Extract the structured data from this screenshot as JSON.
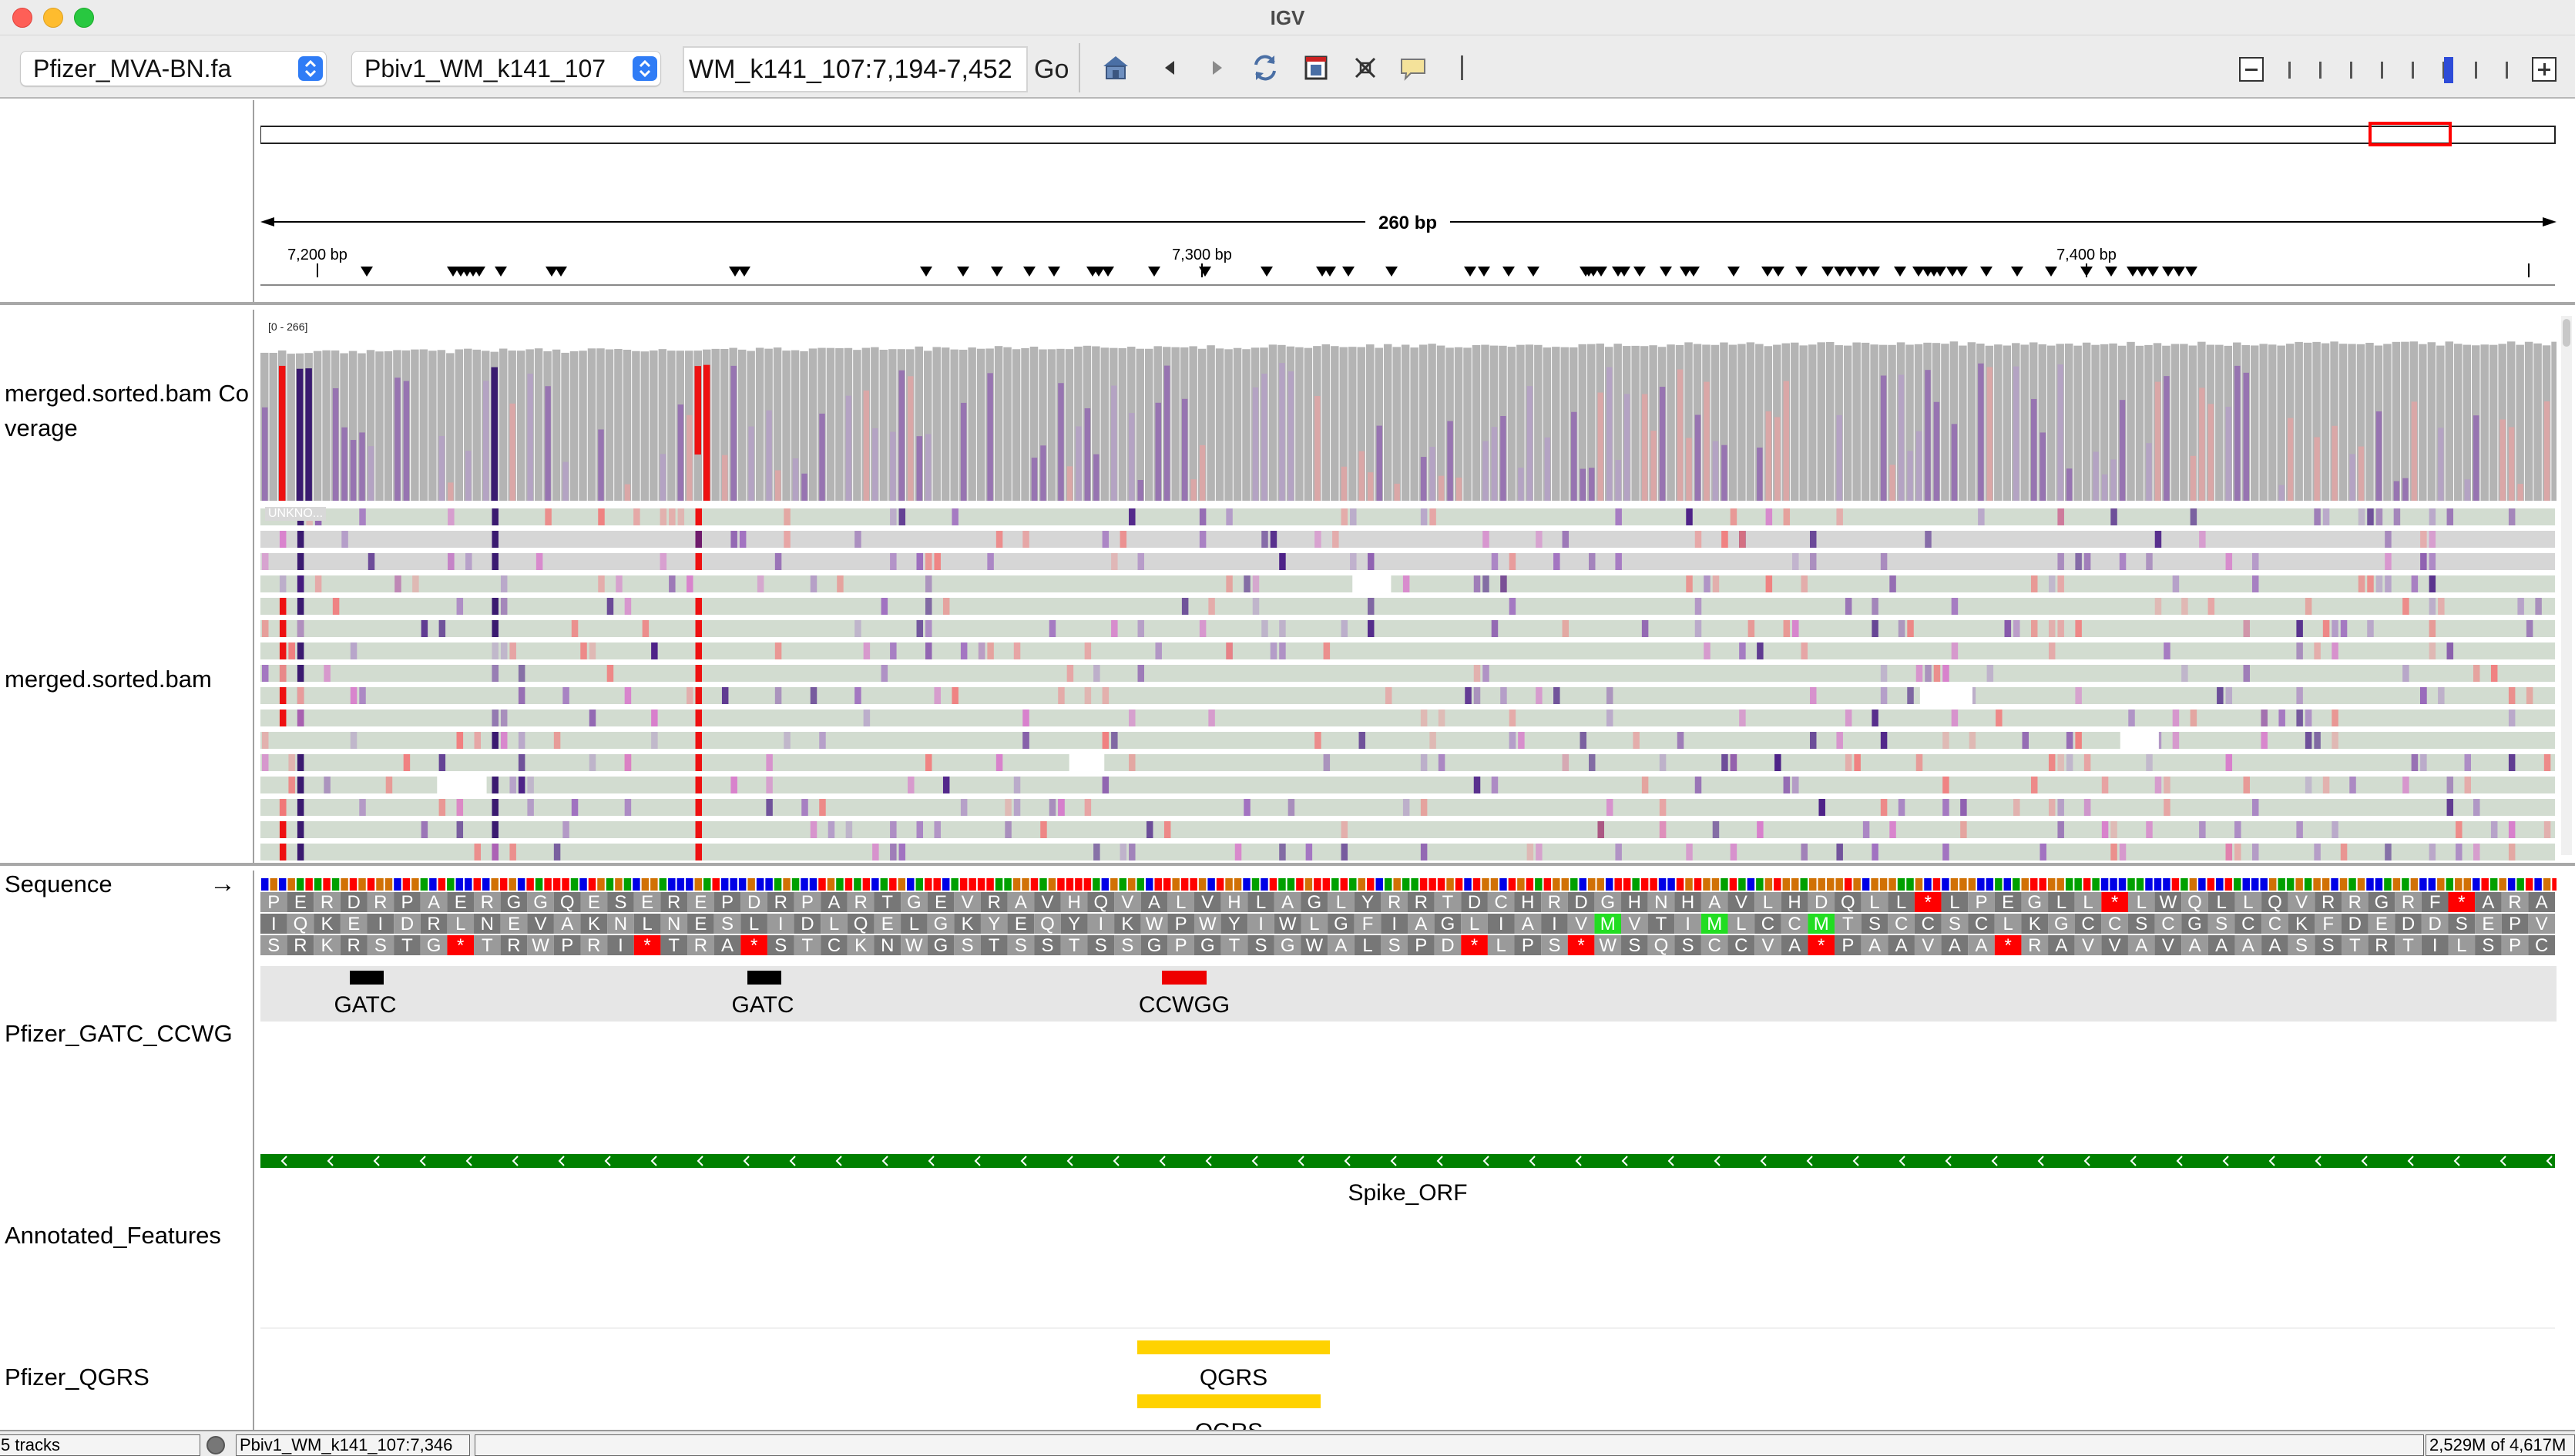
{
  "window": {
    "title": "IGV"
  },
  "toolbar": {
    "genome": "Pfizer_MVA-BN.fa",
    "chromosome": "Pbiv1_WM_k141_107",
    "locus": "WM_k141_107:7,194-7,452",
    "go_label": "Go"
  },
  "ruler": {
    "span_label": "260 bp",
    "ticks": [
      "7,200 bp",
      "7,300 bp",
      "7,400 bp"
    ]
  },
  "tracks": {
    "coverage": {
      "name": "merged.sorted.bam Co\nverage",
      "range": "[0 - 266]"
    },
    "alignments": {
      "name": "merged.sorted.bam",
      "first_read_label": "UNKNO..."
    },
    "sequence": {
      "name": "Sequence",
      "strand_arrow": "→"
    },
    "motifs": {
      "name": "Pfizer_GATC_CCWG",
      "features": [
        "GATC",
        "GATC",
        "CCWGG"
      ]
    },
    "annotated": {
      "name": "Annotated_Features",
      "feature": "Spike_ORF"
    },
    "qgrs": {
      "name": "Pfizer_QGRS",
      "features": [
        "QGRS",
        "QGRS"
      ]
    }
  },
  "translation": {
    "frame1": "PERDRPAERGGQESEREPDRPARTGEVRAVHQVALVHLAGLYRRTDCHRDGHNHAVLHDQLL*LPEGLL*LWQLLQVRRGRF*ARA",
    "frame2": "IQKEIDRLNEVAKNLNESLIDLQELGKYEQYIKWPWYIWLGFIAGLIAIVMVTIMLCCMTSCCSCLKGCCSCGSCCKFDEDDSEPVL",
    "frame3": "SRKRSTG*TRWPRI*TRA*STCKNWGSTSSTSSGPGTSGWALSPD*LPS*WSQSCCVA*PAAVAA*RAVVAVAAAASSTRTILSPC*"
  },
  "status": {
    "tracks": "5 tracks",
    "position": "Pbiv1_WM_k141_107:7,346",
    "memory": "2,529M of 4,617M"
  },
  "colors": {
    "base_A": "#00a000",
    "base_C": "#0000e6",
    "base_G": "#d17105",
    "base_T": "#ff0000",
    "read_fill": "#d2dcd0",
    "coverage_gray": "#b4b4b4",
    "mismatch_red": "#ee1111",
    "motif_gatc": "#000000",
    "motif_ccwgg": "#ee0000",
    "spike_orf": "#008000",
    "qgrs": "#ffd700",
    "stop_codon": "#ff0000",
    "start_codon": "#22dd22",
    "locator_box": "#ff0000"
  }
}
